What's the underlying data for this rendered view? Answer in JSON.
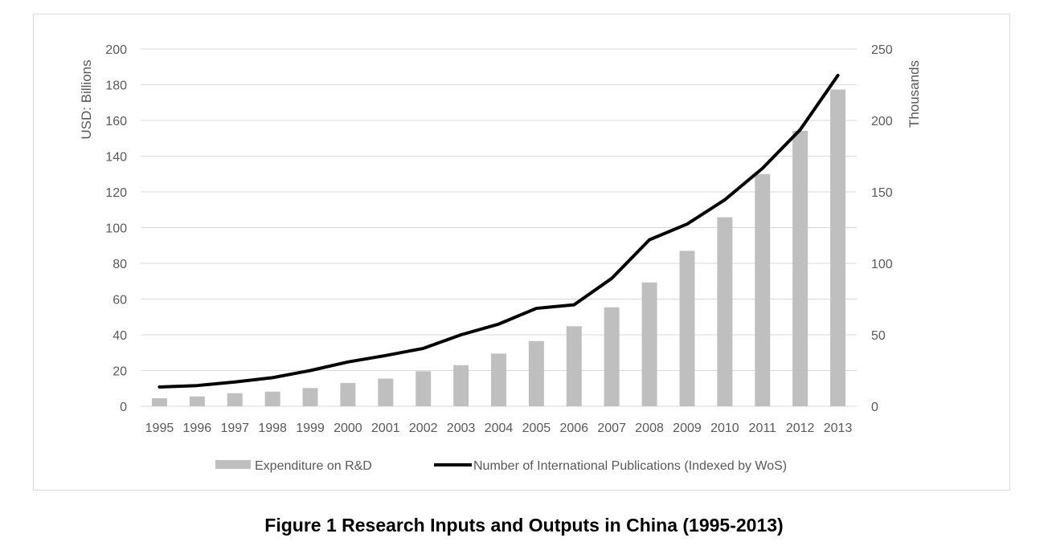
{
  "caption": "Figure 1 Research Inputs and Outputs in China (1995-2013)",
  "colors": {
    "bar": "#bfbfbf",
    "line": "#000000",
    "grid": "#d9d9d9",
    "text": "#595959"
  },
  "chart_data": {
    "type": "bar",
    "title": "",
    "categories": [
      "1995",
      "1996",
      "1997",
      "1998",
      "1999",
      "2000",
      "2001",
      "2002",
      "2003",
      "2004",
      "2005",
      "2006",
      "2007",
      "2008",
      "2009",
      "2010",
      "2011",
      "2012",
      "2013"
    ],
    "ylabel": "USD: Billions",
    "y2label": "Thousands",
    "ylim": [
      0,
      200
    ],
    "y2lim": [
      0,
      250
    ],
    "yticks": [
      0,
      20,
      40,
      60,
      80,
      100,
      120,
      140,
      160,
      180,
      200
    ],
    "y2ticks": [
      0,
      50,
      100,
      150,
      200,
      250
    ],
    "grid": true,
    "legend_position": "bottom",
    "series": [
      {
        "name": "Expenditure on R&D",
        "type": "bar",
        "axis": "left",
        "values": [
          4.5,
          5.5,
          7.3,
          8.2,
          10.2,
          13,
          15.5,
          19.6,
          23,
          29.5,
          36.5,
          44.8,
          55.4,
          69.3,
          87,
          105.8,
          130,
          154.2,
          177.3
        ]
      },
      {
        "name": "Number of International Publications (Indexed by WoS)",
        "type": "line",
        "axis": "right",
        "values": [
          13.5,
          14.5,
          17,
          20,
          25,
          31,
          35.5,
          40.5,
          50,
          57.5,
          68.5,
          71,
          89.5,
          116.5,
          127.5,
          144.5,
          166.5,
          193.5,
          231.5
        ]
      }
    ]
  }
}
